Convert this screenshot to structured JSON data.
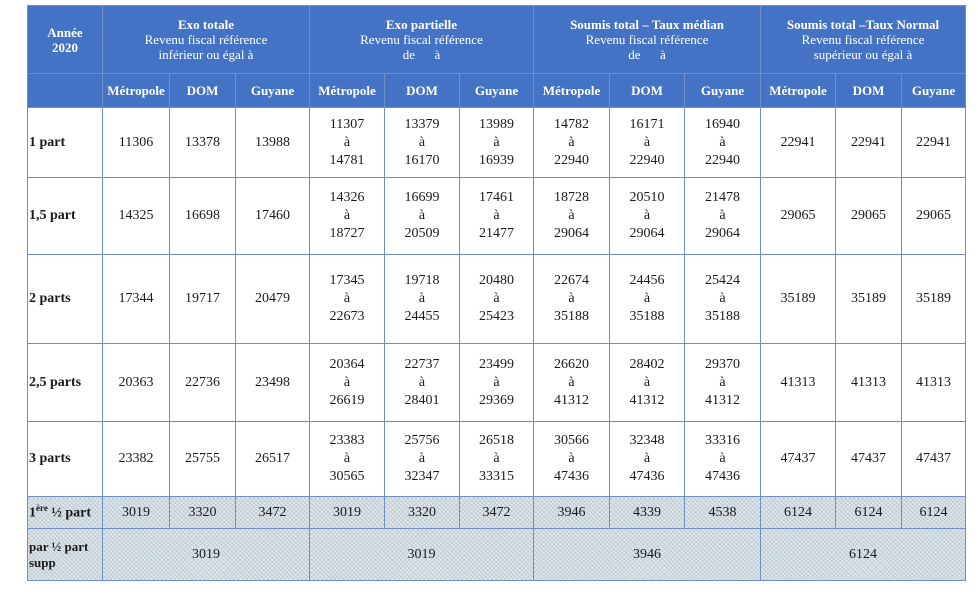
{
  "header": {
    "year_label": "Année 2020",
    "groups": [
      {
        "title": "Exo totale",
        "line2": "Revenu fiscal référence",
        "line3": "inférieur ou égal à"
      },
      {
        "title": "Exo partielle",
        "line2": "Revenu fiscal référence",
        "line3": "de      à"
      },
      {
        "title": "Soumis total – Taux médian",
        "line2": "Revenu fiscal référence",
        "line3": "de      à"
      },
      {
        "title": "Soumis total –Taux Normal",
        "line2": "Revenu fiscal référence",
        "line3": "supérieur ou égal à"
      }
    ],
    "subheaders": [
      "Métropole",
      "DOM",
      "Guyane",
      "Métropole",
      "DOM",
      "Guyane",
      "Métropole",
      "DOM",
      "Guyane",
      "Métropole",
      "DOM",
      "Guyane"
    ]
  },
  "rows": [
    {
      "label": "1 part",
      "exo_totale": [
        "11306",
        "13378",
        "13988"
      ],
      "exo_partielle": [
        [
          "11307",
          "à",
          "14781"
        ],
        [
          "13379",
          "à",
          "16170"
        ],
        [
          "13989",
          "à",
          "16939"
        ]
      ],
      "median": [
        [
          "14782",
          "à",
          "22940"
        ],
        [
          "16171",
          "à",
          "22940"
        ],
        [
          "16940",
          "à",
          "22940"
        ]
      ],
      "normal": [
        "22941",
        "22941",
        "22941"
      ]
    },
    {
      "label": "1,5 part",
      "exo_totale": [
        "14325",
        "16698",
        "17460"
      ],
      "exo_partielle": [
        [
          "14326",
          "à",
          "18727"
        ],
        [
          "16699",
          "à",
          "20509"
        ],
        [
          "17461",
          "à",
          "21477"
        ]
      ],
      "median": [
        [
          "18728",
          "à",
          "29064"
        ],
        [
          "20510",
          "à",
          "29064"
        ],
        [
          "21478",
          "à",
          "29064"
        ]
      ],
      "normal": [
        "29065",
        "29065",
        "29065"
      ]
    },
    {
      "label": "2 parts",
      "exo_totale": [
        "17344",
        "19717",
        "20479"
      ],
      "exo_partielle": [
        [
          "17345",
          "à",
          "22673"
        ],
        [
          "19718",
          "à",
          "24455"
        ],
        [
          "20480",
          "à",
          "25423"
        ]
      ],
      "median": [
        [
          "22674",
          "à",
          "35188"
        ],
        [
          "24456",
          "à",
          "35188"
        ],
        [
          "25424",
          "à",
          "35188"
        ]
      ],
      "normal": [
        "35189",
        "35189",
        "35189"
      ]
    },
    {
      "label": "2,5 parts",
      "exo_totale": [
        "20363",
        "22736",
        "23498"
      ],
      "exo_partielle": [
        [
          "20364",
          "à",
          "26619"
        ],
        [
          "22737",
          "à",
          "28401"
        ],
        [
          "23499",
          "à",
          "29369"
        ]
      ],
      "median": [
        [
          "26620",
          "à",
          "41312"
        ],
        [
          "28402",
          "à",
          "41312"
        ],
        [
          "29370",
          "à",
          "41312"
        ]
      ],
      "normal": [
        "41313",
        "41313",
        "41313"
      ]
    },
    {
      "label": "3 parts",
      "exo_totale": [
        "23382",
        "25755",
        "26517"
      ],
      "exo_partielle": [
        [
          "23383",
          "à",
          "30565"
        ],
        [
          "25756",
          "à",
          "32347"
        ],
        [
          "26518",
          "à",
          "33315"
        ]
      ],
      "median": [
        [
          "30566",
          "à",
          "47436"
        ],
        [
          "32348",
          "à",
          "47436"
        ],
        [
          "33316",
          "à",
          "47436"
        ]
      ],
      "normal": [
        "47437",
        "47437",
        "47437"
      ]
    }
  ],
  "first_half_part": {
    "label_main": "1",
    "label_sup": "ère",
    "label_rest": " ½ part",
    "values": [
      "3019",
      "3320",
      "3472",
      "3019",
      "3320",
      "3472",
      "3946",
      "4339",
      "4538",
      "6124",
      "6124",
      "6124"
    ]
  },
  "supp_half_part": {
    "label": "par ½ part supp",
    "values": [
      "3019",
      "3019",
      "3946",
      "6124"
    ]
  }
}
